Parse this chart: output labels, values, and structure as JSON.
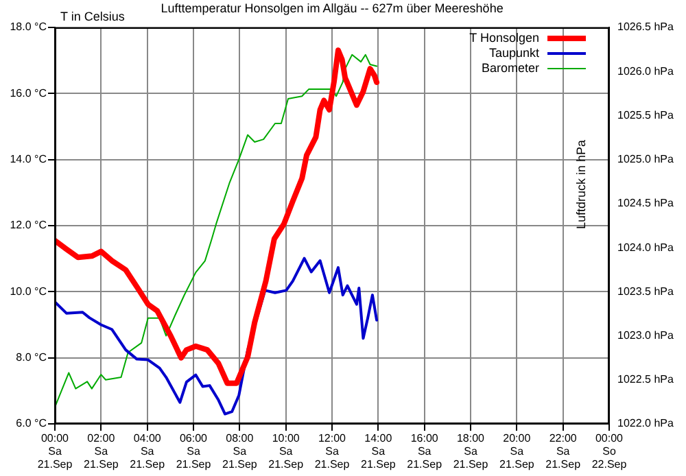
{
  "chart_data": {
    "type": "line",
    "title": "Lufttemperatur Honsolgen im Allgäu -- 627m über Meereshöhe",
    "ylabel": "T in Celsius",
    "y2label": "Luftdruck in hPa",
    "xlim": [
      "--09-21T00:00",
      "--09-22T00:00"
    ],
    "xticks": [
      {
        "value": "--09-21T00:00",
        "label": "00:00\nSa\n21.Sep"
      },
      {
        "value": "--09-21T02:00",
        "label": "02:00\nSa\n21.Sep"
      },
      {
        "value": "--09-21T04:00",
        "label": "04:00\nSa\n21.Sep"
      },
      {
        "value": "--09-21T06:00",
        "label": "06:00\nSa\n21.Sep"
      },
      {
        "value": "--09-21T08:00",
        "label": "08:00\nSa\n21.Sep"
      },
      {
        "value": "--09-21T10:00",
        "label": "10:00\nSa\n21.Sep"
      },
      {
        "value": "--09-21T12:00",
        "label": "12:00\nSa\n21.Sep"
      },
      {
        "value": "--09-21T14:00",
        "label": "14:00\nSa\n21.Sep"
      },
      {
        "value": "--09-21T16:00",
        "label": "16:00\nSa\n21.Sep"
      },
      {
        "value": "--09-21T18:00",
        "label": "18:00\nSa\n21.Sep"
      },
      {
        "value": "--09-21T20:00",
        "label": "20:00\nSa\n21.Sep"
      },
      {
        "value": "--09-21T22:00",
        "label": "22:00\nSa\n21.Sep"
      },
      {
        "value": "--09-22T00:00",
        "label": "00:00\nSo\n22.Sep"
      }
    ],
    "ylim": [
      6,
      18
    ],
    "yticks": [
      {
        "value": 6,
        "label": "6.0 °C"
      },
      {
        "value": 8,
        "label": "8.0 °C"
      },
      {
        "value": 10,
        "label": "10.0 °C"
      },
      {
        "value": 12,
        "label": "12.0 °C"
      },
      {
        "value": 14,
        "label": "14.0 °C"
      },
      {
        "value": 16,
        "label": "16.0 °C"
      },
      {
        "value": 18,
        "label": "18.0 °C"
      }
    ],
    "y2lim": [
      1022,
      1026.5
    ],
    "y2ticks": [
      {
        "value": 1022,
        "label": "1022.0 hPa"
      },
      {
        "value": 1022.5,
        "label": "1022.5 hPa"
      },
      {
        "value": 1023,
        "label": "1023.0 hPa"
      },
      {
        "value": 1023.5,
        "label": "1023.5 hPa"
      },
      {
        "value": 1024,
        "label": "1024.0 hPa"
      },
      {
        "value": 1024.5,
        "label": "1024.5 hPa"
      },
      {
        "value": 1025,
        "label": "1025.0 hPa"
      },
      {
        "value": 1025.5,
        "label": "1025.5 hPa"
      },
      {
        "value": 1026,
        "label": "1026.0 hPa"
      },
      {
        "value": 1026.5,
        "label": "1026.5 hPa"
      }
    ],
    "grid": true,
    "legend": "top right",
    "marker": "none",
    "line_style": "solid",
    "series": [
      {
        "name": "T Honsolgen",
        "color": "#ff0000",
        "x": [
          "--09-21T00:00",
          "--09-21T00:30",
          "--09-21T01:00",
          "--09-21T01:36",
          "--09-21T02:00",
          "--09-21T02:28",
          "--09-21T03:04",
          "--09-21T03:39",
          "--09-21T04:02",
          "--09-21T04:26",
          "--09-21T05:01",
          "--09-21T05:28",
          "--09-21T05:42",
          "--09-21T06:06",
          "--09-21T06:36",
          "--09-21T07:05",
          "--09-21T07:28",
          "--09-21T07:52",
          "--09-21T08:21",
          "--09-21T08:39",
          "--09-21T09:08",
          "--09-21T09:30",
          "--09-21T09:55",
          "--09-21T10:18",
          "--09-21T10:42",
          "--09-21T10:54",
          "--09-21T11:18",
          "--09-21T11:29",
          "--09-21T11:39",
          "--09-21T11:53",
          "--09-21T12:05",
          "--09-21T12:16",
          "--09-21T12:26",
          "--09-21T12:34",
          "--09-21T13:04",
          "--09-21T13:21",
          "--09-21T13:39",
          "--09-21T13:50",
          "--09-21T13:56"
        ],
        "values": [
          11.55,
          11.29,
          11.04,
          11.08,
          11.22,
          10.94,
          10.66,
          10.04,
          9.62,
          9.42,
          8.66,
          8.0,
          8.24,
          8.35,
          8.24,
          7.83,
          7.23,
          7.23,
          8.03,
          9.07,
          10.32,
          11.6,
          12.05,
          12.74,
          13.43,
          14.13,
          14.68,
          15.51,
          15.79,
          15.51,
          16.34,
          17.31,
          17.03,
          16.48,
          15.65,
          16.06,
          16.75,
          16.55,
          16.34
        ]
      },
      {
        "name": "Taupunkt",
        "color": "#0000cc",
        "x": [
          "--09-21T00:00",
          "--09-21T00:30",
          "--09-21T01:12",
          "--09-21T01:30",
          "--09-21T02:00",
          "--09-21T02:28",
          "--09-21T03:04",
          "--09-21T03:33",
          "--09-21T04:02",
          "--09-21T04:32",
          "--09-21T04:49",
          "--09-21T05:25",
          "--09-21T05:42",
          "--09-21T06:06",
          "--09-21T06:24",
          "--09-21T06:42",
          "--09-21T07:05",
          "--09-21T07:22",
          "--09-21T07:40",
          "--09-21T07:58",
          "--09-21T08:21",
          "--09-21T08:45",
          "--09-21T09:06",
          "--09-21T09:32",
          "--09-21T10:01",
          "--09-21T10:18",
          "--09-21T10:48",
          "--09-21T11:06",
          "--09-21T11:29",
          "--09-21T11:53",
          "--09-21T12:16",
          "--09-21T12:28",
          "--09-21T12:40",
          "--09-21T13:04",
          "--09-21T13:10",
          "--09-21T13:21",
          "--09-21T13:33",
          "--09-21T13:45",
          "--09-21T13:56"
        ],
        "values": [
          9.69,
          9.35,
          9.38,
          9.21,
          9.0,
          8.86,
          8.24,
          7.96,
          7.94,
          7.69,
          7.41,
          6.65,
          7.27,
          7.48,
          7.13,
          7.16,
          6.72,
          6.3,
          6.37,
          6.86,
          8.24,
          9.21,
          10.04,
          9.97,
          10.04,
          10.32,
          11.01,
          10.6,
          10.94,
          9.97,
          10.73,
          9.9,
          10.18,
          9.62,
          10.11,
          8.59,
          9.21,
          9.9,
          9.14
        ]
      },
      {
        "name": "Barometer",
        "color": "#00aa00",
        "axis": "y2",
        "x": [
          "--09-21T00:00",
          "--09-21T00:12",
          "--09-21T00:36",
          "--09-21T00:54",
          "--09-21T01:24",
          "--09-21T01:36",
          "--09-21T02:00",
          "--09-21T02:12",
          "--09-21T02:52",
          "--09-21T03:10",
          "--09-21T03:45",
          "--09-21T04:02",
          "--09-21T04:32",
          "--09-21T04:49",
          "--09-21T05:12",
          "--09-21T05:36",
          "--09-21T06:06",
          "--09-21T06:30",
          "--09-21T06:47",
          "--09-21T06:59",
          "--09-21T07:34",
          "--09-21T07:58",
          "--09-21T08:21",
          "--09-21T08:39",
          "--09-21T09:02",
          "--09-21T09:32",
          "--09-21T09:48",
          "--09-21T10:06",
          "--09-21T10:42",
          "--09-21T11:00",
          "--09-21T11:59",
          "--09-21T12:11",
          "--09-21T12:28",
          "--09-21T12:34",
          "--09-21T12:52",
          "--09-21T13:15",
          "--09-21T13:27",
          "--09-21T13:39",
          "--09-21T13:56"
        ],
        "values": [
          1022.19,
          1022.32,
          1022.58,
          1022.4,
          1022.48,
          1022.4,
          1022.56,
          1022.5,
          1022.53,
          1022.81,
          1022.92,
          1023.2,
          1023.2,
          1023.0,
          1023.23,
          1023.46,
          1023.72,
          1023.85,
          1024.09,
          1024.27,
          1024.74,
          1025.0,
          1025.28,
          1025.2,
          1025.23,
          1025.41,
          1025.41,
          1025.69,
          1025.72,
          1025.8,
          1025.8,
          1025.72,
          1025.88,
          1026.03,
          1026.19,
          1026.11,
          1026.19,
          1026.08,
          1026.06
        ]
      }
    ]
  }
}
